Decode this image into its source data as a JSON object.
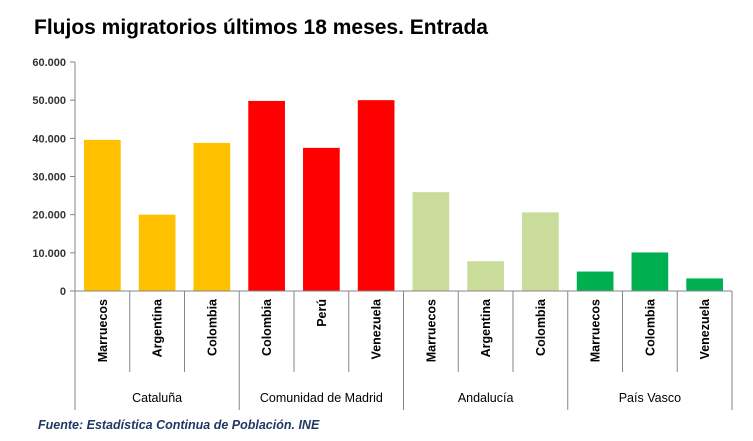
{
  "title": "Flujos migratorios últimos 18 meses. Entrada",
  "source": "Fuente: Estadística Continua de Población. INE",
  "chart_data": {
    "type": "bar",
    "title": "Flujos migratorios últimos 18 meses. Entrada",
    "xlabel": "",
    "ylabel": "",
    "ylim": [
      0,
      60000
    ],
    "y_ticks": [
      "0",
      "10.000",
      "20.000",
      "30.000",
      "40.000",
      "50.000",
      "60.000"
    ],
    "y_tick_values": [
      0,
      10000,
      20000,
      30000,
      40000,
      50000,
      60000
    ],
    "grid": false,
    "legend": "none",
    "groups": [
      {
        "name": "Cataluña",
        "color": "#ffc000",
        "categories": [
          "Marruecos",
          "Argentina",
          "Colombia"
        ],
        "values": [
          39600,
          20000,
          38800
        ]
      },
      {
        "name": "Comunidad de Madrid",
        "color": "#ff0000",
        "categories": [
          "Colombia",
          "Perú",
          "Venezuela"
        ],
        "values": [
          49800,
          37500,
          50000
        ]
      },
      {
        "name": "Andalucía",
        "color": "#c9dc9a",
        "categories": [
          "Marruecos",
          "Argentina",
          "Colombia"
        ],
        "values": [
          25900,
          7800,
          20600
        ]
      },
      {
        "name": "País Vasco",
        "color": "#00b050",
        "categories": [
          "Marruecos",
          "Colombia",
          "Venezuela"
        ],
        "values": [
          5100,
          10100,
          3300
        ]
      }
    ]
  }
}
